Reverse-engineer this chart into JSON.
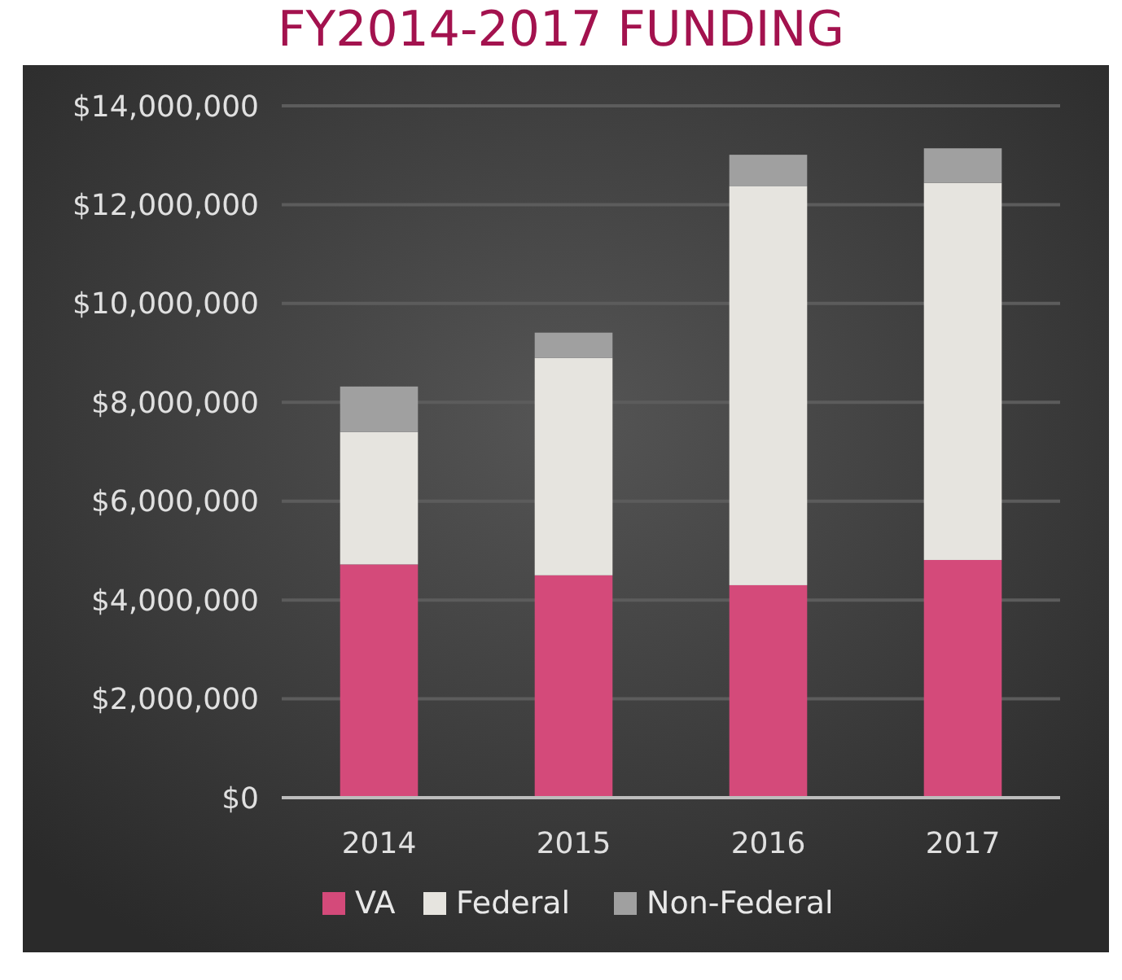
{
  "chart_data": {
    "type": "bar",
    "title": "FY2014-2017 FUNDING",
    "categories": [
      "2014",
      "2015",
      "2016",
      "2017"
    ],
    "stacked": true,
    "series": [
      {
        "name": "VA",
        "color": "#d44a7a",
        "values": [
          4720000,
          4500000,
          4300000,
          4810000
        ]
      },
      {
        "name": "Federal",
        "color": "#e6e4df",
        "values": [
          2680000,
          4400000,
          8070000,
          7630000
        ]
      },
      {
        "name": "Non-Federal",
        "color": "#a0a0a0",
        "values": [
          920000,
          510000,
          640000,
          700000
        ]
      }
    ],
    "ylim": [
      0,
      14000000
    ],
    "yticks": [
      {
        "value": 0,
        "label": "$0"
      },
      {
        "value": 2000000,
        "label": "$2,000,000"
      },
      {
        "value": 4000000,
        "label": "$4,000,000"
      },
      {
        "value": 6000000,
        "label": "$6,000,000"
      },
      {
        "value": 8000000,
        "label": "$8,000,000"
      },
      {
        "value": 10000000,
        "label": "$10,000,000"
      },
      {
        "value": 12000000,
        "label": "$12,000,000"
      },
      {
        "value": 14000000,
        "label": "$14,000,000"
      }
    ],
    "grid": "y",
    "legend": "bottom"
  }
}
